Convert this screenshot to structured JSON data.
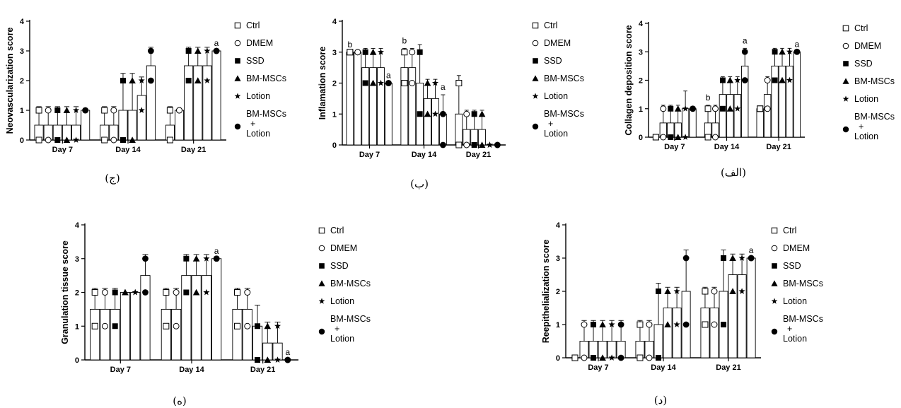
{
  "figure": {
    "legend": [
      {
        "label": "Ctrl",
        "marker": "square-open"
      },
      {
        "label": "DMEM",
        "marker": "circle-open"
      },
      {
        "label": "SSD",
        "marker": "square-filled"
      },
      {
        "label": "BM-MSCs",
        "marker": "triangle-filled"
      },
      {
        "label": "Lotion",
        "marker": "star-filled"
      },
      {
        "label": [
          "BM-MSCs",
          "+",
          "Lotion"
        ],
        "marker": "circle-filled"
      }
    ]
  },
  "chart_data": [
    {
      "panel": "(ج)",
      "type": "bar",
      "ylabel": "Neovascularization score",
      "ylim": [
        0,
        4
      ],
      "yticks": [
        0,
        1,
        2,
        3,
        4
      ],
      "categories": [
        "Day 7",
        "Day 14",
        "Day 21"
      ],
      "series": [
        {
          "name": "Ctrl",
          "means": [
            0.5,
            0.5,
            0.5
          ],
          "points": [
            [
              1,
              0
            ],
            [
              1,
              0
            ],
            [
              1,
              0
            ]
          ]
        },
        {
          "name": "DMEM",
          "means": [
            0.5,
            0.5,
            1
          ],
          "points": [
            [
              1,
              0
            ],
            [
              1,
              0
            ],
            [
              1,
              1
            ]
          ]
        },
        {
          "name": "SSD",
          "means": [
            0.5,
            1,
            2.5
          ],
          "points": [
            [
              1,
              0
            ],
            [
              2,
              0
            ],
            [
              3,
              2
            ]
          ]
        },
        {
          "name": "BM-MSCs",
          "means": [
            0.5,
            1,
            2.5
          ],
          "points": [
            [
              1,
              0
            ],
            [
              2,
              0
            ],
            [
              3,
              2
            ]
          ]
        },
        {
          "name": "Lotion",
          "means": [
            0.5,
            1.5,
            2.5
          ],
          "points": [
            [
              1,
              0
            ],
            [
              2,
              1
            ],
            [
              3,
              2
            ]
          ]
        },
        {
          "name": "BM-MSCs + Lotion",
          "means": [
            1,
            2.5,
            3
          ],
          "points": [
            [
              1,
              1
            ],
            [
              3,
              2
            ],
            [
              3,
              3
            ]
          ]
        }
      ],
      "annotations": [
        {
          "text": "a",
          "category": 2,
          "series": 5
        }
      ]
    },
    {
      "panel": "(ب)",
      "type": "bar",
      "ylabel": "Inflamation score",
      "ylim": [
        0,
        4
      ],
      "yticks": [
        0,
        1,
        2,
        3,
        4
      ],
      "categories": [
        "Day 7",
        "Day 14",
        "Day 21"
      ],
      "series": [
        {
          "name": "Ctrl",
          "means": [
            3,
            2.5,
            1
          ],
          "points": [
            [
              3,
              3
            ],
            [
              3,
              2
            ],
            [
              2,
              0
            ]
          ]
        },
        {
          "name": "DMEM",
          "means": [
            3,
            2.5,
            0.5
          ],
          "points": [
            [
              3,
              3
            ],
            [
              3,
              2
            ],
            [
              1,
              0
            ]
          ]
        },
        {
          "name": "SSD",
          "means": [
            2.5,
            2,
            0.5
          ],
          "points": [
            [
              3,
              2
            ],
            [
              3,
              1
            ],
            [
              1,
              0
            ]
          ]
        },
        {
          "name": "BM-MSCs",
          "means": [
            2.5,
            1.5,
            0.5
          ],
          "points": [
            [
              3,
              2
            ],
            [
              2,
              1
            ],
            [
              1,
              0
            ]
          ]
        },
        {
          "name": "Lotion",
          "means": [
            2.5,
            1.5,
            0
          ],
          "points": [
            [
              3,
              2
            ],
            [
              2,
              1
            ],
            [
              0,
              0
            ]
          ]
        },
        {
          "name": "BM-MSCs + Lotion",
          "means": [
            2,
            1,
            0
          ],
          "points": [
            [
              2,
              2
            ],
            [
              1,
              0
            ],
            [
              0,
              0
            ]
          ]
        }
      ],
      "annotations": [
        {
          "text": "b",
          "category": 0,
          "series": 0
        },
        {
          "text": "a",
          "category": 0,
          "series": 5
        },
        {
          "text": "b",
          "category": 1,
          "series": 0
        },
        {
          "text": "a",
          "category": 1,
          "series": 5
        }
      ]
    },
    {
      "panel": "(الف)",
      "type": "bar",
      "ylabel": "Collagen deposition score",
      "ylim": [
        0,
        4
      ],
      "yticks": [
        0,
        1,
        2,
        3,
        4
      ],
      "categories": [
        "Day 7",
        "Day 14",
        "Day 21"
      ],
      "series": [
        {
          "name": "Ctrl",
          "means": [
            0,
            0.5,
            1
          ],
          "points": [
            [
              0,
              0
            ],
            [
              1,
              0
            ],
            [
              1,
              1
            ]
          ]
        },
        {
          "name": "DMEM",
          "means": [
            0.5,
            0.5,
            1.5
          ],
          "points": [
            [
              1,
              0
            ],
            [
              1,
              0
            ],
            [
              2,
              1
            ]
          ]
        },
        {
          "name": "SSD",
          "means": [
            0.5,
            1.5,
            2.5
          ],
          "points": [
            [
              1,
              0
            ],
            [
              2,
              1
            ],
            [
              3,
              2
            ]
          ]
        },
        {
          "name": "BM-MSCs",
          "means": [
            0.5,
            1.5,
            2.5
          ],
          "points": [
            [
              1,
              0
            ],
            [
              2,
              1
            ],
            [
              3,
              2
            ]
          ]
        },
        {
          "name": "Lotion",
          "means": [
            1,
            1.5,
            2.5
          ],
          "points": [
            [
              1,
              0
            ],
            [
              2,
              1
            ],
            [
              3,
              2
            ]
          ]
        },
        {
          "name": "BM-MSCs + Lotion",
          "means": [
            1,
            2.5,
            3
          ],
          "points": [
            [
              1,
              1
            ],
            [
              3,
              2
            ],
            [
              3,
              3
            ]
          ]
        }
      ],
      "annotations": [
        {
          "text": "b",
          "category": 1,
          "series": 0
        },
        {
          "text": "a",
          "category": 1,
          "series": 5
        },
        {
          "text": "a",
          "category": 2,
          "series": 5
        }
      ]
    },
    {
      "panel": "(ه)",
      "type": "bar",
      "ylabel": "Granulation tissue score",
      "ylim": [
        0,
        4
      ],
      "yticks": [
        0,
        1,
        2,
        3,
        4
      ],
      "categories": [
        "Day 7",
        "Day 14",
        "Day 21"
      ],
      "series": [
        {
          "name": "Ctrl",
          "means": [
            1.5,
            1.5,
            1.5
          ],
          "points": [
            [
              2,
              1
            ],
            [
              2,
              1
            ],
            [
              2,
              1
            ]
          ]
        },
        {
          "name": "DMEM",
          "means": [
            1.5,
            1.5,
            1.5
          ],
          "points": [
            [
              2,
              1
            ],
            [
              2,
              1
            ],
            [
              2,
              1
            ]
          ]
        },
        {
          "name": "SSD",
          "means": [
            1.5,
            2.5,
            1
          ],
          "points": [
            [
              2,
              1
            ],
            [
              3,
              2
            ],
            [
              1,
              0
            ]
          ]
        },
        {
          "name": "BM-MSCs",
          "means": [
            2,
            2.5,
            0.5
          ],
          "points": [
            [
              2,
              2
            ],
            [
              3,
              2
            ],
            [
              1,
              0
            ]
          ]
        },
        {
          "name": "Lotion",
          "means": [
            2,
            2.5,
            0.5
          ],
          "points": [
            [
              2,
              2
            ],
            [
              3,
              2
            ],
            [
              1,
              0
            ]
          ]
        },
        {
          "name": "BM-MSCs + Lotion",
          "means": [
            2.5,
            3,
            0
          ],
          "points": [
            [
              3,
              2
            ],
            [
              3,
              3
            ],
            [
              0,
              0
            ]
          ]
        }
      ],
      "annotations": [
        {
          "text": "a",
          "category": 1,
          "series": 5
        },
        {
          "text": "a",
          "category": 2,
          "series": 5
        }
      ]
    },
    {
      "panel": "(د)",
      "type": "bar",
      "ylabel": "Reepithelialization score",
      "ylim": [
        0,
        4
      ],
      "yticks": [
        0,
        1,
        2,
        3,
        4
      ],
      "categories": [
        "Day 7",
        "Day 14",
        "Day 21"
      ],
      "series": [
        {
          "name": "Ctrl",
          "means": [
            0,
            0.5,
            1.5
          ],
          "points": [
            [
              0,
              0
            ],
            [
              1,
              0
            ],
            [
              2,
              1
            ]
          ]
        },
        {
          "name": "DMEM",
          "means": [
            0.5,
            0.5,
            1.5
          ],
          "points": [
            [
              1,
              0
            ],
            [
              1,
              0
            ],
            [
              2,
              1
            ]
          ]
        },
        {
          "name": "SSD",
          "means": [
            0.5,
            1,
            2
          ],
          "points": [
            [
              1,
              0
            ],
            [
              2,
              0
            ],
            [
              3,
              1
            ]
          ]
        },
        {
          "name": "BM-MSCs",
          "means": [
            0.5,
            1.5,
            2.5
          ],
          "points": [
            [
              1,
              0
            ],
            [
              2,
              1
            ],
            [
              3,
              2
            ]
          ]
        },
        {
          "name": "Lotion",
          "means": [
            0.5,
            1.5,
            2.5
          ],
          "points": [
            [
              1,
              0
            ],
            [
              2,
              1
            ],
            [
              3,
              2
            ]
          ]
        },
        {
          "name": "BM-MSCs + Lotion",
          "means": [
            0.5,
            2,
            3
          ],
          "points": [
            [
              1,
              0
            ],
            [
              3,
              1
            ],
            [
              3,
              3
            ]
          ]
        }
      ],
      "annotations": [
        {
          "text": "a",
          "category": 2,
          "series": 5
        }
      ]
    }
  ]
}
